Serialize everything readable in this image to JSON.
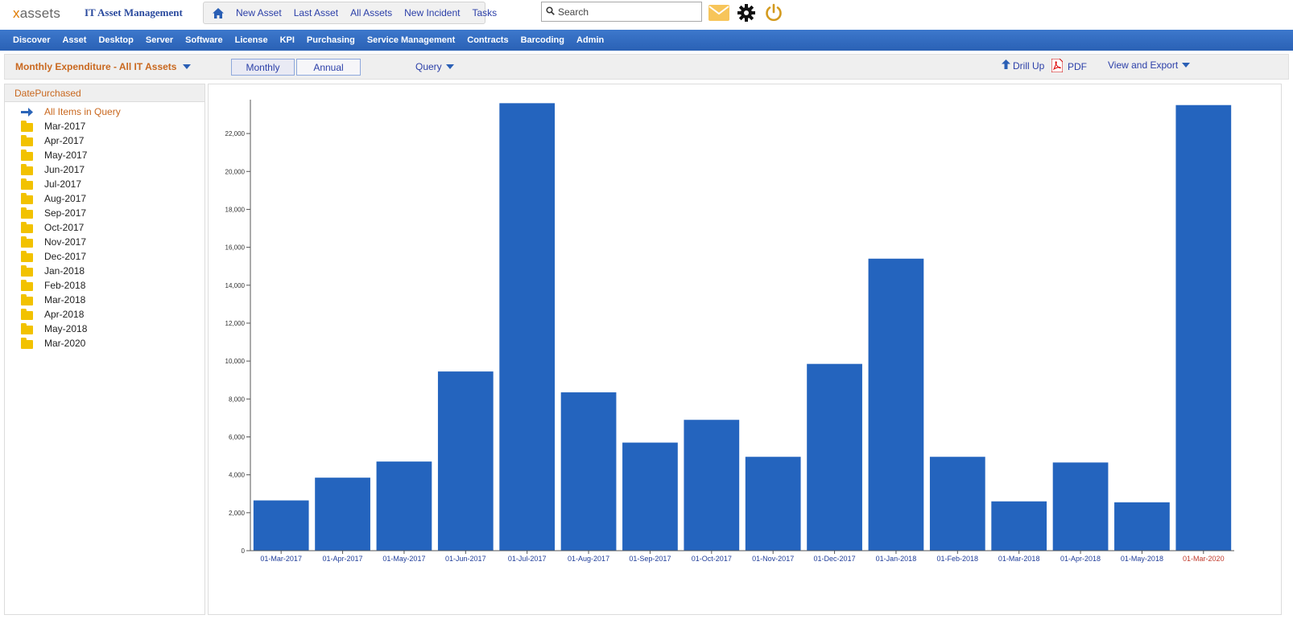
{
  "header": {
    "logo_prefix": "x",
    "logo_rest": "assets",
    "app_title": "IT Asset Management",
    "quick_links": [
      "New Asset",
      "Last Asset",
      "All Assets",
      "New Incident",
      "Tasks"
    ],
    "search_placeholder": "Search",
    "icons": [
      "home-icon",
      "search-icon",
      "mail-icon",
      "gear-icon",
      "power-icon"
    ],
    "colors": {
      "mail": "#f7c55a",
      "power": "#d39a1e",
      "gear": "#111111"
    }
  },
  "nav": {
    "items": [
      "Discover",
      "Asset",
      "Desktop",
      "Server",
      "Software",
      "License",
      "KPI",
      "Purchasing",
      "Service Management",
      "Contracts",
      "Barcoding",
      "Admin"
    ],
    "color": "#2e66bb"
  },
  "toolbar": {
    "report_title": "Monthly Expenditure - All IT Assets",
    "monthly_label": "Monthly",
    "annual_label": "Annual",
    "query_label": "Query",
    "drill_up_label": "Drill Up",
    "pdf_label": "PDF",
    "export_label": "View and Export"
  },
  "sidebar": {
    "heading": "DatePurchased",
    "all_items_label": "All Items in Query",
    "items": [
      "Mar-2017",
      "Apr-2017",
      "May-2017",
      "Jun-2017",
      "Jul-2017",
      "Aug-2017",
      "Sep-2017",
      "Oct-2017",
      "Nov-2017",
      "Dec-2017",
      "Jan-2018",
      "Feb-2018",
      "Mar-2018",
      "Apr-2018",
      "May-2018",
      "Mar-2020"
    ]
  },
  "chart_data": {
    "type": "bar",
    "title": "",
    "xlabel": "",
    "ylabel": "",
    "categories": [
      "01-Mar-2017",
      "01-Apr-2017",
      "01-May-2017",
      "01-Jun-2017",
      "01-Jul-2017",
      "01-Aug-2017",
      "01-Sep-2017",
      "01-Oct-2017",
      "01-Nov-2017",
      "01-Dec-2017",
      "01-Jan-2018",
      "01-Feb-2018",
      "01-Mar-2018",
      "01-Apr-2018",
      "01-May-2018",
      "01-Mar-2020"
    ],
    "values": [
      2650,
      3850,
      4700,
      9450,
      23600,
      8350,
      5700,
      6900,
      4950,
      9850,
      15400,
      4950,
      2600,
      4650,
      2550,
      23500
    ],
    "ylim": [
      0,
      23700
    ],
    "yticks": [
      0,
      2000,
      4000,
      6000,
      8000,
      10000,
      12000,
      14000,
      16000,
      18000,
      20000,
      22000
    ],
    "ytick_labels": [
      "0",
      "2,000",
      "4,000",
      "6,000",
      "8,000",
      "10,000",
      "12,000",
      "14,000",
      "16,000",
      "18,000",
      "20,000",
      "22,000"
    ],
    "bar_color": "#2464be",
    "tick_label_color": "#1f3d99",
    "highlight_label_color": "#c0392b",
    "highlight_category": "01-Mar-2020",
    "grid": false,
    "legend": "none"
  }
}
